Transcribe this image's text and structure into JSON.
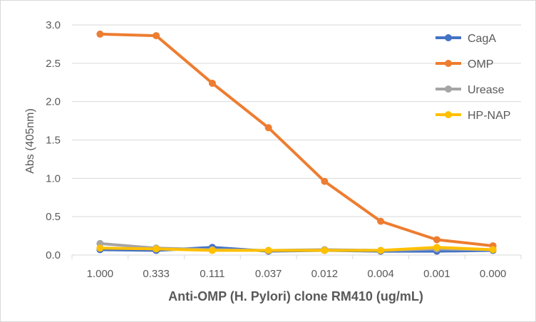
{
  "chart_data": {
    "type": "line",
    "title": "",
    "xlabel": "Anti-OMP (H. Pylori) clone RM410 (ug/mL)",
    "ylabel": "Abs (405nm)",
    "categories": [
      "1.000",
      "0.333",
      "0.111",
      "0.037",
      "0.012",
      "0.004",
      "0.001",
      "0.000"
    ],
    "ylim": [
      0,
      3.0
    ],
    "yticks": [
      "0.0",
      "0.5",
      "1.0",
      "1.5",
      "2.0",
      "2.5",
      "3.0"
    ],
    "grid": true,
    "legend_position": "top-right",
    "series": [
      {
        "name": "CagA",
        "color": "#4472C4",
        "values": [
          0.07,
          0.06,
          0.1,
          0.05,
          0.06,
          0.05,
          0.05,
          0.06
        ]
      },
      {
        "name": "OMP",
        "color": "#ED7D31",
        "values": [
          2.88,
          2.86,
          2.24,
          1.66,
          0.96,
          0.44,
          0.2,
          0.12
        ]
      },
      {
        "name": "Urease",
        "color": "#A5A5A5",
        "values": [
          0.15,
          0.09,
          0.07,
          0.06,
          0.07,
          0.06,
          0.08,
          0.07
        ]
      },
      {
        "name": "HP-NAP",
        "color": "#FFC000",
        "values": [
          0.09,
          0.08,
          0.06,
          0.06,
          0.06,
          0.06,
          0.1,
          0.07
        ]
      }
    ]
  }
}
